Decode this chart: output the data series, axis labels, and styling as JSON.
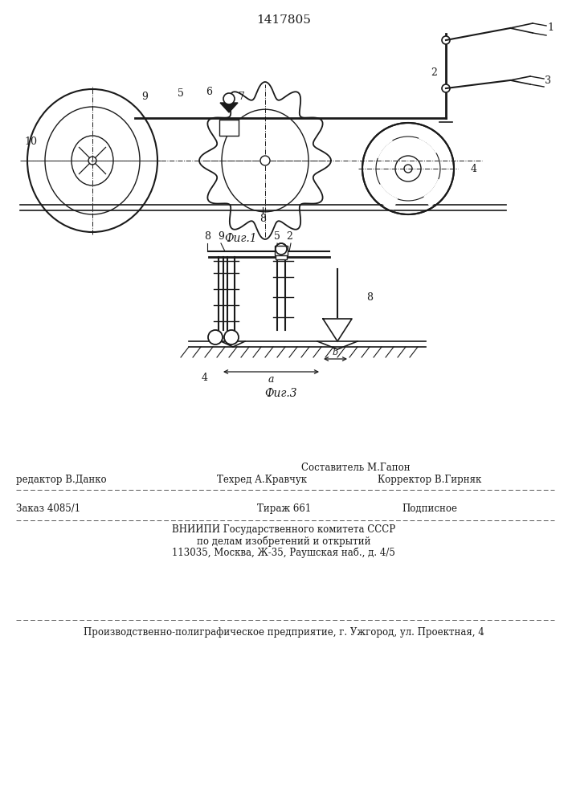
{
  "patent_number": "1417805",
  "fig1_caption": "Фиг.1",
  "fig3_caption": "Фиг.3",
  "bg": "#ffffff",
  "lc": "#1a1a1a",
  "footer": {
    "sostavitel": "Составитель М.Гапон",
    "tekhred": "Техред А.Кравчук",
    "korrektor": "Корректор В.Гирняк",
    "redaktor": "редактор В.Данко",
    "zakaz": "Заказ 4085/1",
    "tirazh": "Тираж 661",
    "podpisnoe": "Подписное",
    "vniip1": "ВНИИПИ Государственного комитета СССР",
    "vniip2": "по делам изобретений и открытий",
    "vniip3": "113035, Москва, Ж-35, Раушская наб., д. 4/5",
    "proizv": "Производственно-полиграфическое предприятие, г. Ужгород, ул. Проектная, 4"
  }
}
